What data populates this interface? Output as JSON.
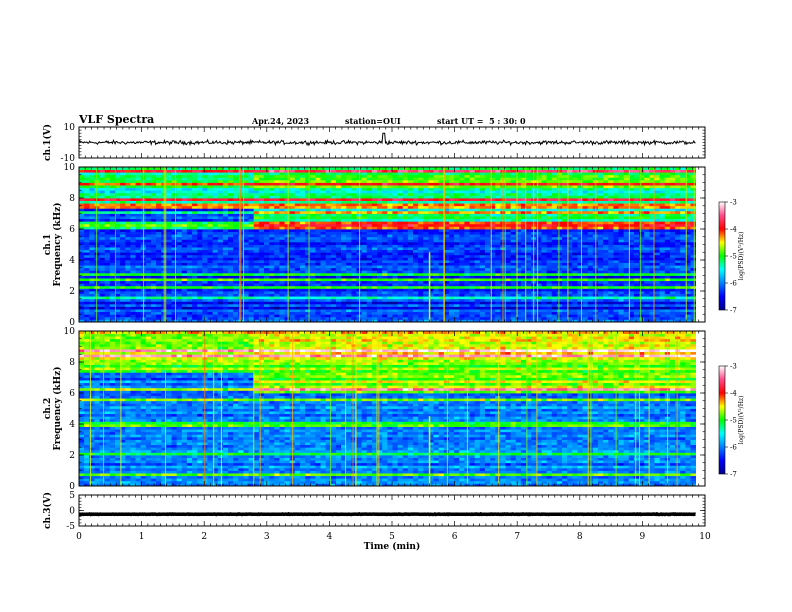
{
  "header": {
    "title": "VLF Spectra",
    "date": "Apr.24, 2023",
    "station": "station=OUI",
    "start_ut": "start UT =  5 : 30: 0"
  },
  "colorscale": {
    "stops": [
      "#00008b",
      "#0000ff",
      "#0080ff",
      "#00ffff",
      "#00ff00",
      "#ffff00",
      "#ff0000",
      "#ff4a8a",
      "#ffffff"
    ]
  },
  "chart_data": [
    {
      "type": "line",
      "panel": "ch1-waveform",
      "ylabel": "ch.1(V)",
      "yticks": [
        "10",
        "-10"
      ],
      "ylim": [
        -10,
        10
      ],
      "x": [
        0,
        10
      ],
      "baseline": 0,
      "amplitude_approx": 1.5,
      "spike_at_min": 4.87,
      "xlim": [
        0,
        10
      ]
    },
    {
      "type": "heatmap",
      "panel": "ch1-spectrogram",
      "ylabel": "ch.1\nFrequency (kHz)",
      "ylabel_line1": "ch.1",
      "ylabel_line2": "Frequency (kHz)",
      "yticks": [
        "0",
        "2",
        "4",
        "6",
        "8",
        "10"
      ],
      "ylim": [
        0,
        10
      ],
      "xlim": [
        0,
        10
      ],
      "data_end_min": 9.85,
      "colorbar": {
        "label": "log(PSD)(V²/Hz)",
        "ticks": [
          "-3",
          "-4",
          "-5",
          "-6",
          "-7"
        ],
        "range": [
          -7,
          -3
        ]
      },
      "features": {
        "background_logpsd": -6.3,
        "high_band_khz": [
          6,
          10
        ],
        "high_band_logpsd": -5.3,
        "band_shift_at_min": 2.8,
        "discontinuity_at_min": 5.6
      }
    },
    {
      "type": "heatmap",
      "panel": "ch2-spectrogram",
      "ylabel": "ch.2\nFrequency (kHz)",
      "ylabel_line1": "ch.2",
      "ylabel_line2": "Frequency (kHz)",
      "yticks": [
        "0",
        "2",
        "4",
        "6",
        "8",
        "10"
      ],
      "ylim": [
        0,
        10
      ],
      "xlim": [
        0,
        10
      ],
      "data_end_min": 9.85,
      "colorbar": {
        "label": "log(PSD)(V²/Hz)",
        "ticks": [
          "-3",
          "-4",
          "-5",
          "-6",
          "-7"
        ],
        "range": [
          -7,
          -3
        ]
      },
      "features": {
        "background_logpsd": -6.0,
        "high_band_khz": [
          6,
          10
        ],
        "high_band_logpsd": -4.7,
        "band_shift_at_min": 2.8,
        "discontinuity_at_min": 5.6
      }
    },
    {
      "type": "line",
      "panel": "ch3-waveform",
      "ylabel": "ch.3(V)",
      "yticks": [
        "5",
        "0",
        "-5"
      ],
      "ylim": [
        -5,
        5
      ],
      "x": [
        0,
        10
      ],
      "baseline": -1.2,
      "amplitude_approx": 0.1,
      "xlabel": "Time (min)",
      "xticks": [
        "0",
        "1",
        "2",
        "3",
        "4",
        "5",
        "6",
        "7",
        "8",
        "9",
        "10"
      ],
      "xlim": [
        0,
        10
      ]
    }
  ]
}
